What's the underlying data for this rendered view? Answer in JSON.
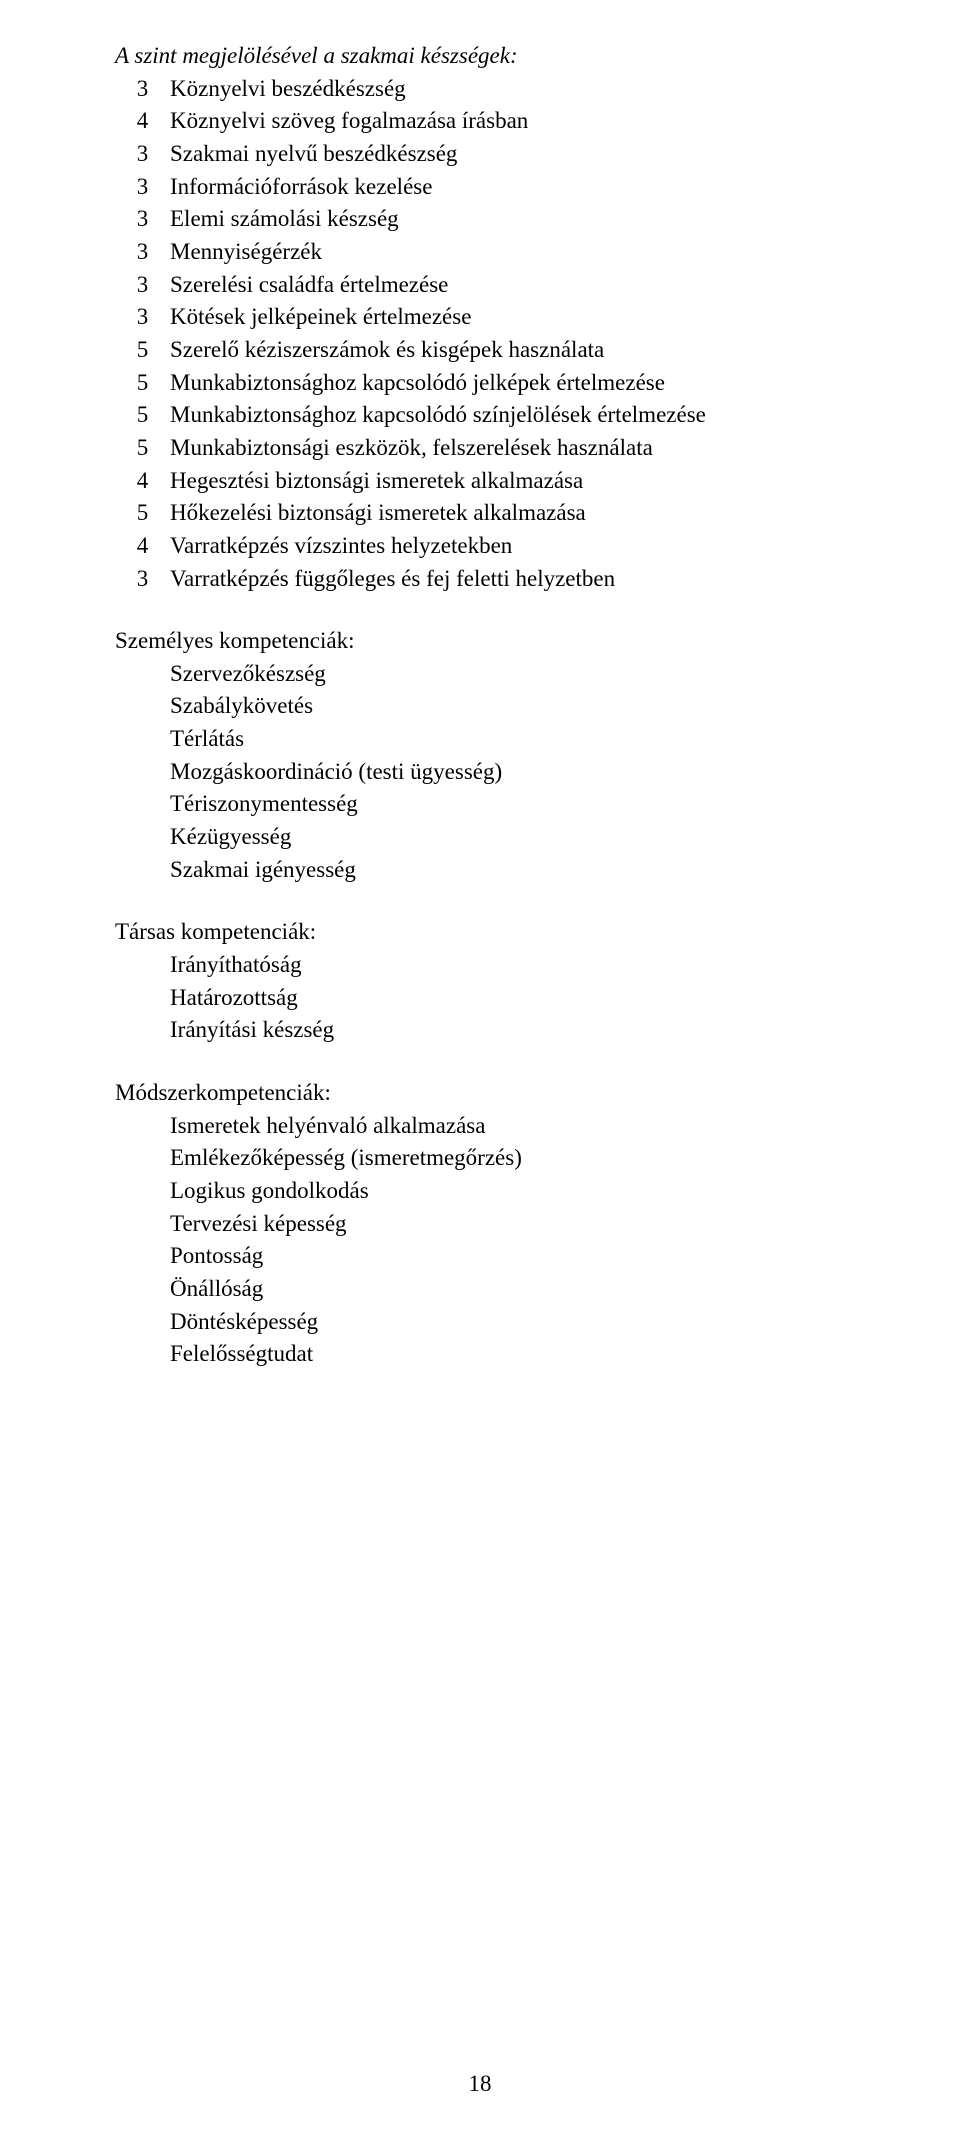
{
  "title": "A szint megjelölésével a szakmai készségek:",
  "skills": [
    {
      "level": "3",
      "text": "Köznyelvi beszédkészség"
    },
    {
      "level": "4",
      "text": "Köznyelvi szöveg fogalmazása írásban"
    },
    {
      "level": "3",
      "text": "Szakmai nyelvű beszédkészség"
    },
    {
      "level": "3",
      "text": "Információforrások kezelése"
    },
    {
      "level": "3",
      "text": "Elemi számolási készség"
    },
    {
      "level": "3",
      "text": "Mennyiségérzék"
    },
    {
      "level": "3",
      "text": "Szerelési családfa értelmezése"
    },
    {
      "level": "3",
      "text": "Kötések jelképeinek értelmezése"
    },
    {
      "level": "5",
      "text": "Szerelő kéziszerszámok és kisgépek használata"
    },
    {
      "level": "5",
      "text": "Munkabiztonsághoz kapcsolódó jelképek értelmezése"
    },
    {
      "level": "5",
      "text": "Munkabiztonsághoz kapcsolódó színjelölések értelmezése"
    },
    {
      "level": "5",
      "text": "Munkabiztonsági eszközök, felszerelések használata"
    },
    {
      "level": "4",
      "text": "Hegesztési biztonsági ismeretek alkalmazása"
    },
    {
      "level": "5",
      "text": "Hőkezelési biztonsági ismeretek alkalmazása"
    },
    {
      "level": "4",
      "text": "Varratképzés vízszintes helyzetekben"
    },
    {
      "level": "3",
      "text": "Varratképzés függőleges és fej feletti helyzetben"
    }
  ],
  "personal": {
    "heading": "Személyes kompetenciák:",
    "items": [
      "Szervezőkészség",
      "Szabálykövetés",
      "Térlátás",
      "Mozgáskoordináció (testi ügyesség)",
      "Tériszonymentesség",
      "Kézügyesség",
      "Szakmai igényesség"
    ]
  },
  "social": {
    "heading": "Társas kompetenciák:",
    "items": [
      "Irányíthatóság",
      "Határozottság",
      "Irányítási készség"
    ]
  },
  "method": {
    "heading": "Módszerkompetenciák:",
    "items": [
      "Ismeretek helyénvaló alkalmazása",
      "Emlékezőképesség (ismeretmegőrzés)",
      "Logikus gondolkodás",
      "Tervezési képesség",
      "Pontosság",
      "Önállóság",
      "Döntésképesség",
      "Felelősségtudat"
    ]
  },
  "pageNumber": "18"
}
